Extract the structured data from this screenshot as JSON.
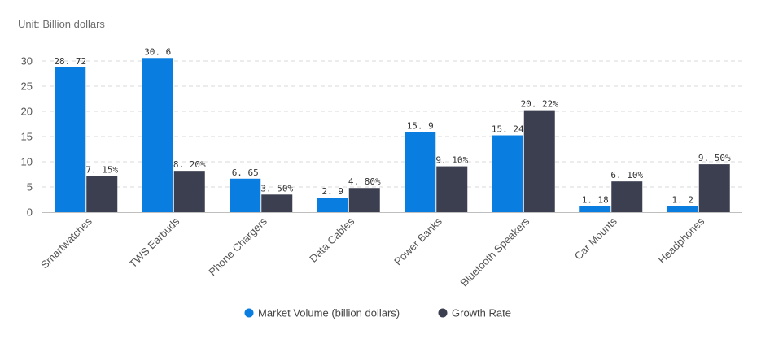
{
  "unit_label": "Unit:  Billion dollars",
  "colors": {
    "market_volume": "#0a7ee0",
    "growth_rate": "#3b3f50",
    "grid": "#d9d9d9",
    "axis": "#bfbfbf"
  },
  "chart_data": {
    "type": "bar",
    "categories": [
      "Smartwatches",
      "TWS Earbuds",
      "Phone Chargers",
      "Data Cables",
      "Power Banks",
      "Bluetooth Speakers",
      "Car Mounts",
      "Headphones"
    ],
    "series": [
      {
        "name": "Market Volume (billion dollars)",
        "values": [
          28.72,
          30.6,
          6.65,
          2.9,
          15.9,
          15.24,
          1.18,
          1.2
        ],
        "labels": [
          "28. 72",
          "30. 6",
          "6. 65",
          "2. 9",
          "15. 9",
          "15. 24",
          "1. 18",
          "1. 2"
        ]
      },
      {
        "name": "Growth Rate",
        "values": [
          7.15,
          8.2,
          3.5,
          4.8,
          9.1,
          20.22,
          6.1,
          9.5
        ],
        "labels": [
          "7. 15%",
          "8. 20%",
          "3. 50%",
          "4. 80%",
          "9. 10%",
          "20. 22%",
          "6. 10%",
          "9. 50%"
        ]
      }
    ],
    "y_ticks": [
      "0",
      "5",
      "10",
      "15",
      "20",
      "25",
      "30"
    ],
    "ylim": [
      0,
      30
    ],
    "grid": true,
    "legend_position": "bottom-center"
  }
}
